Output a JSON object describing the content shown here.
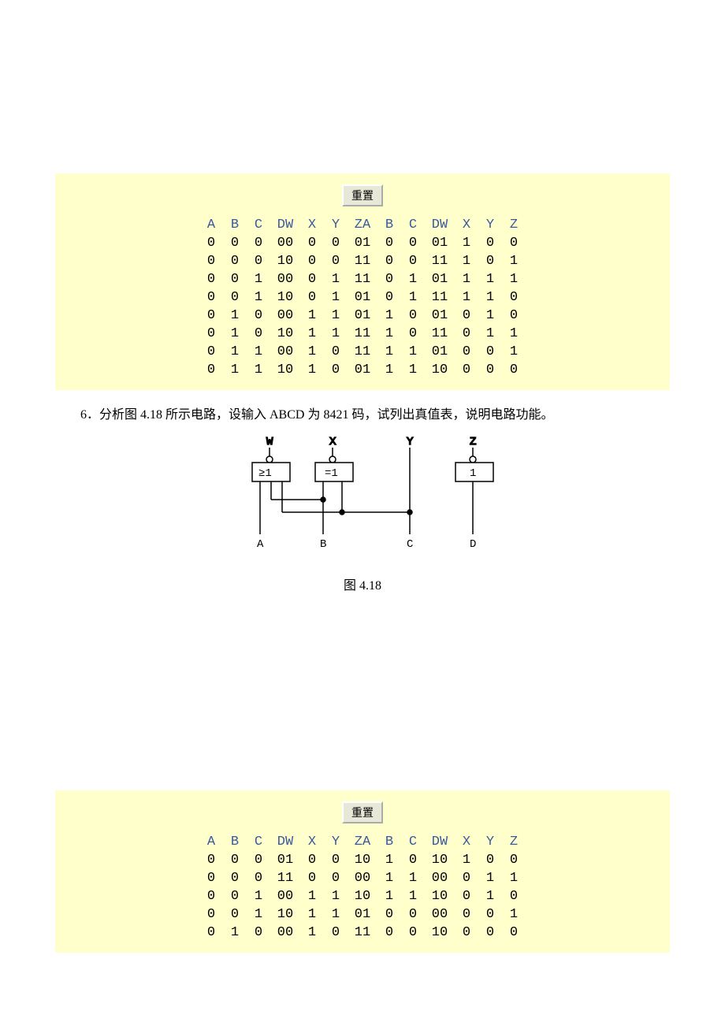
{
  "reset_label": "重置",
  "table1": {
    "headers": [
      "A",
      "B",
      "C",
      "D",
      "W",
      "X",
      "Y",
      "Z",
      "A",
      "B",
      "C",
      "D",
      "W",
      "X",
      "Y",
      "Z"
    ],
    "rows": [
      [
        "0",
        "0",
        "0",
        "0",
        "0",
        "0",
        "0",
        "0",
        "1",
        "0",
        "0",
        "0",
        "1",
        "1",
        "0",
        "0"
      ],
      [
        "0",
        "0",
        "0",
        "1",
        "0",
        "0",
        "0",
        "1",
        "1",
        "0",
        "0",
        "1",
        "1",
        "1",
        "0",
        "1"
      ],
      [
        "0",
        "0",
        "1",
        "0",
        "0",
        "0",
        "1",
        "1",
        "1",
        "0",
        "1",
        "0",
        "1",
        "1",
        "1",
        "1"
      ],
      [
        "0",
        "0",
        "1",
        "1",
        "0",
        "0",
        "1",
        "0",
        "1",
        "0",
        "1",
        "1",
        "1",
        "1",
        "1",
        "0"
      ],
      [
        "0",
        "1",
        "0",
        "0",
        "0",
        "1",
        "1",
        "0",
        "1",
        "1",
        "0",
        "0",
        "1",
        "0",
        "1",
        "0"
      ],
      [
        "0",
        "1",
        "0",
        "1",
        "0",
        "1",
        "1",
        "1",
        "1",
        "1",
        "0",
        "1",
        "1",
        "0",
        "1",
        "1"
      ],
      [
        "0",
        "1",
        "1",
        "0",
        "0",
        "1",
        "0",
        "1",
        "1",
        "1",
        "1",
        "0",
        "1",
        "0",
        "0",
        "1"
      ],
      [
        "0",
        "1",
        "1",
        "1",
        "0",
        "1",
        "0",
        "0",
        "1",
        "1",
        "1",
        "1",
        "0",
        "0",
        "0",
        "0"
      ]
    ],
    "panel_bg": "#ffffcc",
    "header_color": "#3a5a9a",
    "body_color": "#000000"
  },
  "question": {
    "prefix": "　　6．分析图 4.18 所示电路，设输入 ABCD 为 8421 码，试列出真值表，说明电路功能。",
    "caption": "图 4.18"
  },
  "circuit": {
    "outputs": [
      "W",
      "X",
      "Y",
      "Z"
    ],
    "inputs": [
      "A",
      "B",
      "C",
      "D"
    ],
    "gate_labels": [
      "≥1",
      "=1",
      "1"
    ],
    "stroke": "#000000",
    "box_fill": "#ffffff",
    "font": "Courier New"
  },
  "table2": {
    "headers": [
      "A",
      "B",
      "C",
      "D",
      "W",
      "X",
      "Y",
      "Z",
      "A",
      "B",
      "C",
      "D",
      "W",
      "X",
      "Y",
      "Z"
    ],
    "rows": [
      [
        "0",
        "0",
        "0",
        "0",
        "1",
        "0",
        "0",
        "1",
        "0",
        "1",
        "0",
        "1",
        "0",
        "1",
        "0",
        "0"
      ],
      [
        "0",
        "0",
        "0",
        "1",
        "1",
        "0",
        "0",
        "0",
        "0",
        "1",
        "1",
        "0",
        "0",
        "0",
        "1",
        "1"
      ],
      [
        "0",
        "0",
        "1",
        "0",
        "0",
        "1",
        "1",
        "1",
        "0",
        "1",
        "1",
        "1",
        "0",
        "0",
        "1",
        "0"
      ],
      [
        "0",
        "0",
        "1",
        "1",
        "0",
        "1",
        "1",
        "0",
        "1",
        "0",
        "0",
        "0",
        "0",
        "0",
        "0",
        "1"
      ],
      [
        "0",
        "1",
        "0",
        "0",
        "0",
        "1",
        "0",
        "1",
        "1",
        "0",
        "0",
        "1",
        "0",
        "0",
        "0",
        "0"
      ]
    ],
    "panel_bg": "#ffffcc",
    "header_color": "#3a5a9a",
    "body_color": "#000000"
  }
}
